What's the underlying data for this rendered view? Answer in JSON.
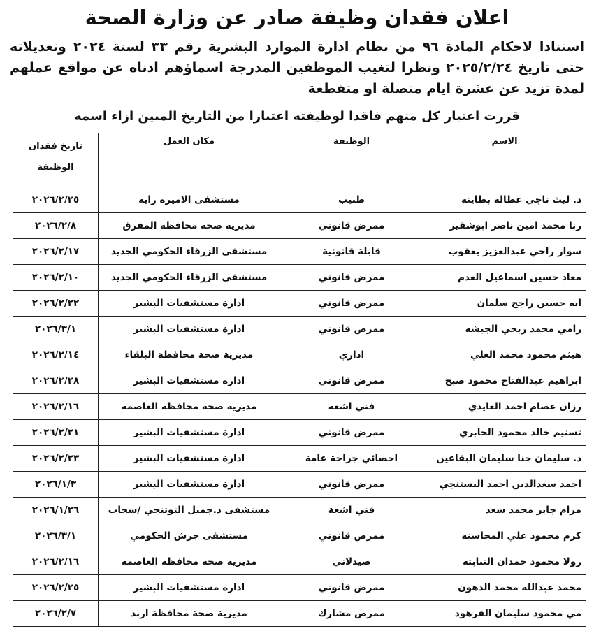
{
  "title": "اعلان فقدان وظيفة صادر عن وزارة الصحة",
  "body": "استنادا لاحكام المادة ٩٦ من نظام ادارة الموارد البشرية رقم ٣٣ لسنة ٢٠٢٤ وتعديلاته حتى تاريخ ٢٠٢٥/٢/٢٤ ونظرا لتغيب الموظفين المدرجة اسماؤهم ادناه عن مواقع عملهم لمدة تزيد عن عشرة ايام متصلة او متقطعة",
  "decision": "قررت اعتبار كل منهم فاقدا لوظيفته اعتبارا من التاريخ المبين ازاء اسمه",
  "table": {
    "header": [
      "الاسم",
      "الوظيفة",
      "مكان العمل",
      "تاريخ فقدان الوظيفة"
    ],
    "rows": [
      [
        "د. ليث ناجي عطاله بطاينه",
        "طبيب",
        "مستشفى الاميرة رايه",
        "٢٠٢٦/٢/٢٥"
      ],
      [
        "رنا محمد امين ناصر ابوشقير",
        "ممرض قانوني",
        "مديرية صحة محافظة المفرق",
        "٢٠٢٦/٢/٨"
      ],
      [
        "سوار راجي عبدالعزيز يعقوب",
        "قابلة قانونية",
        "مستشفى الزرقاء الحكومي الجديد",
        "٢٠٢٦/٢/١٧"
      ],
      [
        "معاذ حسين اسماعيل العدم",
        "ممرض قانوني",
        "مستشفى الزرقاء الحكومي الجديد",
        "٢٠٢٦/٢/١٠"
      ],
      [
        "ايه حسين راجح سلمان",
        "ممرض قانوني",
        "ادارة مستشفيات البشير",
        "٢٠٢٦/٢/٢٢"
      ],
      [
        "رامي محمد ربحي الجبشه",
        "ممرض قانوني",
        "ادارة مستشفيات البشير",
        "٢٠٢٦/٣/١"
      ],
      [
        "هيثم محمود محمد العلي",
        "اداري",
        "مديرية صحة محافظة البلقاء",
        "٢٠٢٦/٢/١٤"
      ],
      [
        "ابراهيم عبدالفتاح محمود صبح",
        "ممرض قانوني",
        "ادارة مستشفيات البشير",
        "٢٠٢٦/٢/٢٨"
      ],
      [
        "رزان عصام احمد العايدي",
        "فني اشعة",
        "مديرية صحة محافظة العاصمه",
        "٢٠٢٦/٢/١٦"
      ],
      [
        "تسنيم خالد محمود الجابري",
        "ممرض قانوني",
        "ادارة مستشفيات البشير",
        "٢٠٢٦/٢/٢١"
      ],
      [
        "د. سليمان حنا سليمان البقاعين",
        "اخصائي جراحة عامة",
        "ادارة مستشفيات البشير",
        "٢٠٢٦/٢/٢٣"
      ],
      [
        "احمد سعدالدين احمد البستنجي",
        "ممرض قانوني",
        "ادارة مستشفيات البشير",
        "٢٠٢٦/١/٣"
      ],
      [
        "مرام جابر محمد سعد",
        "فني اشعة",
        "مستشفى د.جميل التوتنجي /سحاب",
        "٢٠٢٦/١/٢٦"
      ],
      [
        "كرم محمود علي المحاسنه",
        "ممرض قانوني",
        "مستشفى جرش الحكومي",
        "٢٠٢٦/٣/١"
      ],
      [
        "رولا محمود حمدان النبابته",
        "صيدلاني",
        "مديرية صحة محافظة العاصمه",
        "٢٠٢٦/٢/١٦"
      ],
      [
        "محمد عبدالله محمد الدهون",
        "ممرض قانوني",
        "ادارة مستشفيات البشير",
        "٢٠٢٦/٢/٢٥"
      ],
      [
        "مي محمود سليمان الفرهود",
        "ممرض مشارك",
        "مديرية صحة محافظة اربد",
        "٢٠٢٦/٢/٧"
      ]
    ]
  }
}
